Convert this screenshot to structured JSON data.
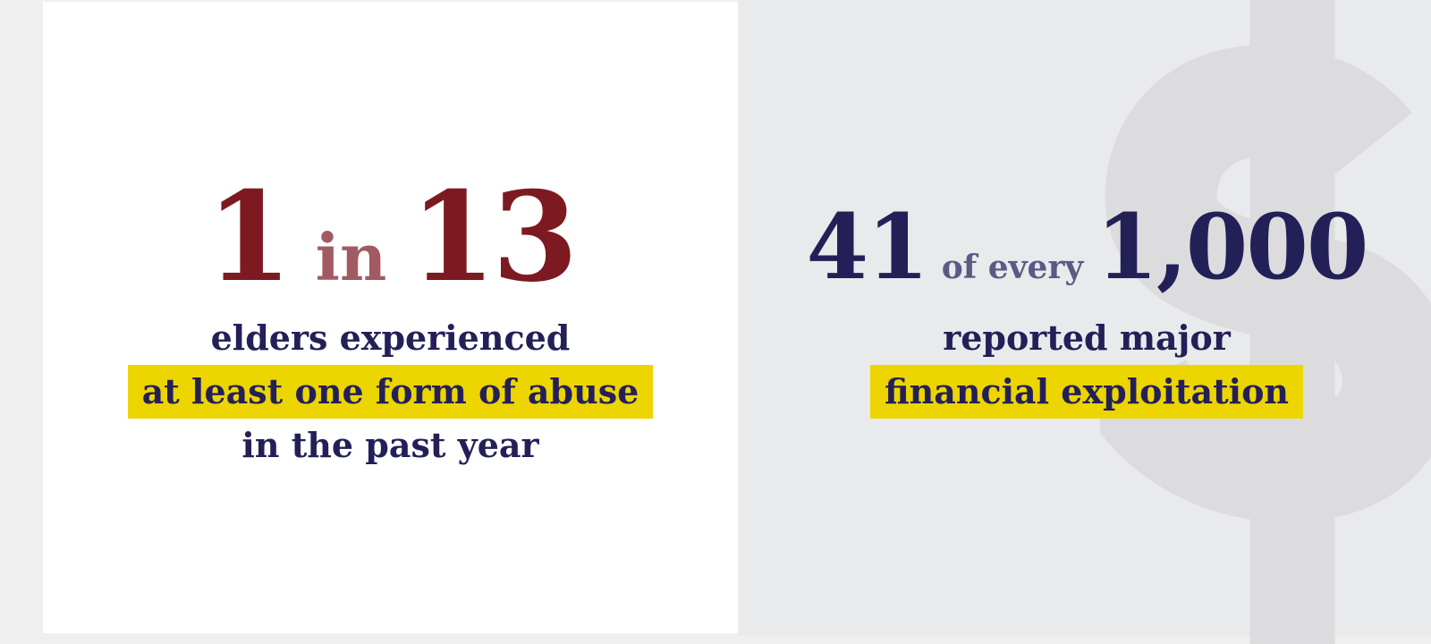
{
  "left_stat": {
    "number_a": "1",
    "connector": "in",
    "number_b": "13",
    "line1": "elders experienced",
    "line2_highlight": "at least one form of abuse",
    "line3": "in the past year"
  },
  "right_stat": {
    "number_a": "41",
    "connector": "of every",
    "number_b": "1,000",
    "line1": "reported major",
    "line2_highlight": "financial exploitation"
  },
  "colors": {
    "accent_red": "#7d1a21",
    "muted_red": "#a25a62",
    "navy": "#232058",
    "highlight_yellow": "#ecd500",
    "left_bg": "#ffffff",
    "right_bg": "#e9eaeb"
  },
  "icons": {
    "watermark": "dollar-sign-icon"
  }
}
